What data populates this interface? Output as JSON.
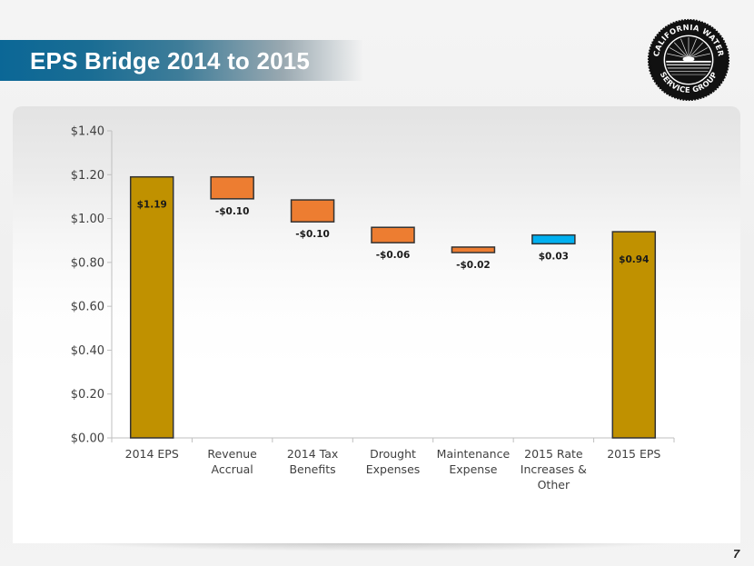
{
  "slide": {
    "title": "EPS Bridge 2014 to 2015",
    "page_number": "7",
    "logo": {
      "icon": "company-seal-icon",
      "top_text": "CALIFORNIA WATER",
      "bottom_text": "SERVICE GROUP"
    }
  },
  "colors": {
    "title_band": "#0b6796",
    "total_bar": "#C09100",
    "decrease_bar": "#ED7D31",
    "increase_bar": "#00B0F0",
    "bar_outline": "#333333",
    "axis": "#bfbfbf"
  },
  "chart_data": {
    "type": "bar",
    "subtype": "waterfall",
    "title": "EPS Bridge 2014 to 2015",
    "xlabel": "",
    "ylabel": "",
    "ylim": [
      0,
      1.4
    ],
    "yticks": [
      0,
      0.2,
      0.4,
      0.6,
      0.8,
      1.0,
      1.2,
      1.4
    ],
    "ytick_labels": [
      "$0.00",
      "$0.20",
      "$0.40",
      "$0.60",
      "$0.80",
      "$1.00",
      "$1.20",
      "$1.40"
    ],
    "grid": false,
    "legend": "none",
    "categories": [
      [
        "2014 EPS"
      ],
      [
        "Revenue",
        "Accrual"
      ],
      [
        "2014 Tax",
        "Benefits"
      ],
      [
        "Drought",
        "Expenses"
      ],
      [
        "Maintenance",
        "Expense"
      ],
      [
        "2015 Rate",
        "Increases &",
        "Other"
      ],
      [
        "2015 EPS"
      ]
    ],
    "bars": [
      {
        "kind": "total",
        "value": 1.19,
        "start": 0,
        "end": 1.19,
        "label": "$1.19"
      },
      {
        "kind": "decrease",
        "value": -0.1,
        "start": 1.19,
        "end": 1.09,
        "label": "-$0.10"
      },
      {
        "kind": "decrease",
        "value": -0.1,
        "start": 1.085,
        "end": 0.985,
        "label": "-$0.10"
      },
      {
        "kind": "decrease",
        "value": -0.06,
        "start": 0.96,
        "end": 0.89,
        "label": "-$0.06"
      },
      {
        "kind": "decrease",
        "value": -0.02,
        "start": 0.87,
        "end": 0.845,
        "label": "-$0.02"
      },
      {
        "kind": "increase",
        "value": 0.03,
        "start": 0.885,
        "end": 0.925,
        "label": "$0.03"
      },
      {
        "kind": "total",
        "value": 0.94,
        "start": 0,
        "end": 0.94,
        "label": "$0.94"
      }
    ]
  }
}
